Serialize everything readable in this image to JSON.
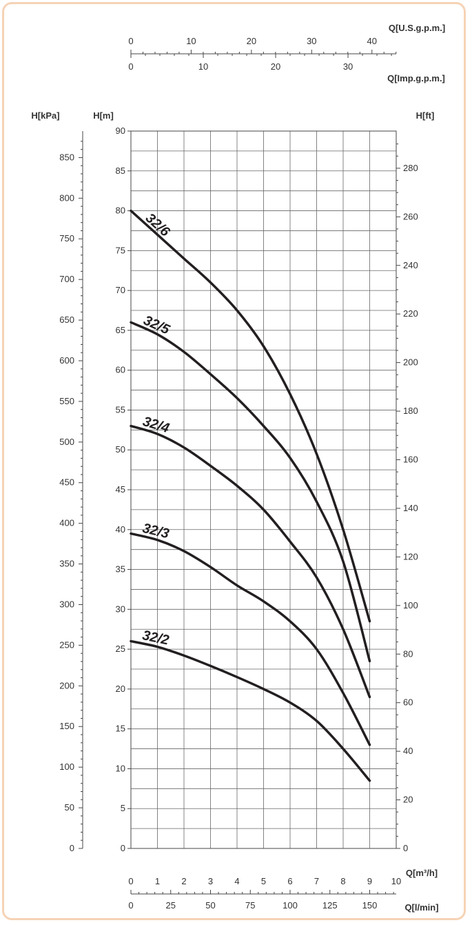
{
  "chart_data": {
    "type": "line",
    "title": "",
    "x_axes": {
      "q_m3h": {
        "label": "Q[m³/h]",
        "range": [
          0,
          10
        ],
        "ticks": [
          "0",
          "1",
          "2",
          "3",
          "4",
          "5",
          "6",
          "7",
          "8",
          "9",
          "10"
        ]
      },
      "q_lmin": {
        "label": "Q[l/min]",
        "range": [
          0,
          166.67
        ],
        "ticks": [
          "0",
          "25",
          "50",
          "75",
          "100",
          "125",
          "150"
        ]
      },
      "q_usgpm": {
        "label": "Q[U.S.g.p.m.]",
        "range": [
          0,
          44.03
        ],
        "ticks": [
          "0",
          "10",
          "20",
          "30",
          "40"
        ]
      },
      "q_impgpm": {
        "label": "Q[Imp.g.p.m.]",
        "range": [
          0,
          36.66
        ],
        "ticks": [
          "0",
          "10",
          "20",
          "30"
        ]
      }
    },
    "y_axes": {
      "h_m": {
        "label": "H[m]",
        "range": [
          0,
          90
        ],
        "ticks": [
          "0",
          "5",
          "10",
          "15",
          "20",
          "25",
          "30",
          "35",
          "40",
          "45",
          "50",
          "55",
          "60",
          "65",
          "70",
          "75",
          "80",
          "85",
          "90"
        ]
      },
      "h_kpa": {
        "label": "H[kPa]",
        "range": [
          0,
          882.6
        ],
        "ticks": [
          "0",
          "50",
          "100",
          "150",
          "200",
          "250",
          "300",
          "350",
          "400",
          "450",
          "500",
          "550",
          "600",
          "650",
          "700",
          "750",
          "800",
          "850"
        ]
      },
      "h_ft": {
        "label": "H[ft]",
        "range": [
          0,
          295.3
        ],
        "ticks": [
          "0",
          "20",
          "40",
          "60",
          "80",
          "100",
          "120",
          "140",
          "160",
          "180",
          "200",
          "220",
          "240",
          "260",
          "280"
        ]
      }
    },
    "grid": true,
    "series": [
      {
        "name": "32/6",
        "x": [
          0,
          1,
          2,
          3,
          4,
          5,
          6,
          7,
          8,
          9
        ],
        "y": [
          80,
          77,
          74,
          71,
          67.5,
          63,
          57,
          49.5,
          40,
          28.5
        ]
      },
      {
        "name": "32/5",
        "x": [
          0,
          1,
          2,
          3,
          4,
          5,
          6,
          7,
          8,
          9
        ],
        "y": [
          66,
          64.5,
          62.3,
          59.5,
          56.5,
          53,
          49,
          43.5,
          36,
          23.5
        ]
      },
      {
        "name": "32/4",
        "x": [
          0,
          1,
          2,
          3,
          4,
          5,
          6,
          7,
          8,
          9
        ],
        "y": [
          53,
          52,
          50.3,
          48,
          45.5,
          42.5,
          38.5,
          34,
          27.5,
          19
        ]
      },
      {
        "name": "32/3",
        "x": [
          0,
          1,
          2,
          3,
          4,
          5,
          6,
          7,
          8,
          9
        ],
        "y": [
          39.5,
          38.7,
          37.3,
          35.3,
          33,
          31,
          28.5,
          25,
          19.5,
          13
        ]
      },
      {
        "name": "32/2",
        "x": [
          0,
          1,
          2,
          3,
          4,
          5,
          6,
          7,
          8,
          9
        ],
        "y": [
          26,
          25.3,
          24.2,
          22.9,
          21.5,
          20,
          18.3,
          16,
          12.5,
          8.5
        ]
      }
    ]
  }
}
